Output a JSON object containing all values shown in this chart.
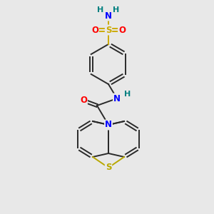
{
  "background_color": "#e8e8e8",
  "bond_color": "#2a2a2a",
  "atom_colors": {
    "N": "#0000ff",
    "O": "#ff0000",
    "S_sulfonyl": "#ccaa00",
    "S_thia": "#b8a800",
    "H": "#008080",
    "C": "#2a2a2a"
  },
  "figsize": [
    3.0,
    3.0
  ],
  "dpi": 100
}
